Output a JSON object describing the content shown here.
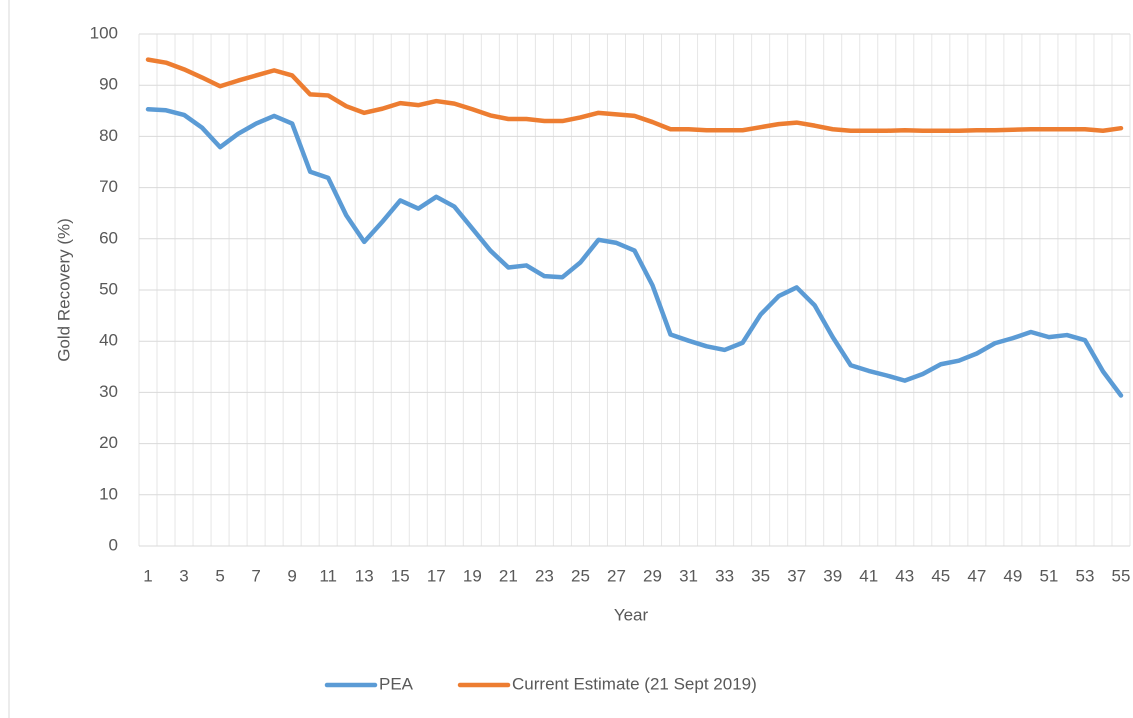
{
  "chart_data": {
    "type": "line",
    "y_label": "Gold Recovery (%)",
    "x_label": "Year",
    "categories": [
      1,
      null,
      3,
      null,
      5,
      null,
      7,
      null,
      9,
      null,
      11,
      null,
      13,
      null,
      15,
      null,
      17,
      null,
      19,
      null,
      21,
      null,
      23,
      null,
      25,
      null,
      27,
      null,
      29,
      null,
      31,
      null,
      33,
      null,
      35,
      null,
      37,
      null,
      39,
      null,
      41,
      null,
      43,
      null,
      45,
      null,
      47,
      null,
      49,
      null,
      51,
      null,
      53,
      null,
      55
    ],
    "series": [
      {
        "name": "PEA",
        "color": "#5b9bd5",
        "values": [
          85.3,
          85.1,
          84.2,
          81.7,
          77.9,
          80.5,
          82.5,
          84.0,
          82.5,
          73.1,
          71.9,
          64.6,
          59.4,
          63.3,
          67.5,
          65.9,
          68.2,
          66.3,
          62.0,
          57.7,
          54.4,
          54.8,
          52.7,
          52.5,
          55.4,
          59.8,
          59.2,
          57.7,
          50.9,
          41.3,
          40.1,
          39.0,
          38.3,
          39.7,
          45.2,
          48.8,
          50.5,
          47.0,
          40.8,
          35.3,
          34.2,
          33.3,
          32.3,
          33.6,
          35.5,
          36.2,
          37.6,
          39.6,
          40.6,
          41.8,
          40.8,
          41.2,
          40.2,
          34.1,
          29.4
        ]
      },
      {
        "name": "Current Estimate (21 Sept 2019)",
        "color": "#ed7d31",
        "values": [
          95.0,
          94.4,
          93.1,
          91.5,
          89.8,
          90.9,
          91.9,
          92.9,
          91.9,
          88.2,
          88.0,
          85.9,
          84.6,
          85.4,
          86.5,
          86.1,
          86.9,
          86.4,
          85.3,
          84.1,
          83.4,
          83.4,
          83.0,
          83.0,
          83.7,
          84.6,
          84.3,
          84.0,
          82.8,
          81.4,
          81.4,
          81.2,
          81.2,
          81.2,
          81.8,
          82.4,
          82.7,
          82.1,
          81.4,
          81.1,
          81.1,
          81.1,
          81.2,
          81.1,
          81.1,
          81.1,
          81.2,
          81.2,
          81.3,
          81.4,
          81.4,
          81.4,
          81.4,
          81.1,
          81.6
        ]
      }
    ],
    "ylim": [
      0,
      100
    ],
    "yticks": [
      0,
      10,
      20,
      30,
      40,
      50,
      60,
      70,
      80,
      90,
      100
    ],
    "grid": true,
    "legend": "bottom"
  }
}
